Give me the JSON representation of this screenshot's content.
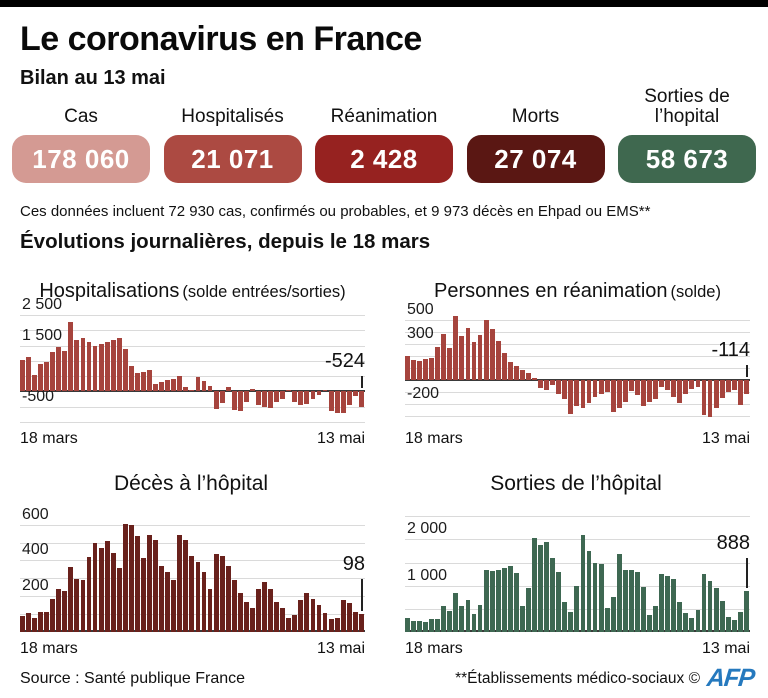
{
  "header": {
    "title": "Le coronavirus en France",
    "subtitle": "Bilan au 13 mai"
  },
  "stats": [
    {
      "label": "Cas",
      "value": "178 060",
      "color": "#d49a93"
    },
    {
      "label": "Hospitalisés",
      "value": "21 071",
      "color": "#ac4a42"
    },
    {
      "label": "Réanimation",
      "value": "2 428",
      "color": "#962220"
    },
    {
      "label": "Morts",
      "value": "27 074",
      "color": "#5a1713"
    },
    {
      "label": "Sorties de l’hopital",
      "value": "58 673",
      "color": "#3f684f"
    }
  ],
  "note": "Ces données incluent 72 930 cas, confirmés ou probables, et 9 973 décès en Ehpad ou EMS**",
  "section_title": "Évolutions journalières, depuis le 18 mars",
  "footer": {
    "source": "Source : Santé publique France",
    "right_note": "**Établissements médico-sociaux ©",
    "logo": "AFP"
  },
  "chart_data": [
    {
      "type": "bar",
      "title": "Hospitalisations",
      "title_paren": "(solde entrées/sorties)",
      "color": "#a6443d",
      "x_start": "18 mars",
      "x_end": "13 mai",
      "annotation": "-524",
      "ann_tick": 12,
      "ylim": [
        -1000,
        2600
      ],
      "grid_step": 500,
      "legend": "none",
      "yticks": [
        {
          "value": 2500,
          "label": "2 500"
        },
        {
          "value": 1500,
          "label": "1 500"
        },
        {
          "value": -500,
          "label": "-500"
        }
      ],
      "values": [
        1020,
        1120,
        540,
        900,
        980,
        1300,
        1440,
        1330,
        2280,
        1680,
        1740,
        1610,
        1500,
        1560,
        1610,
        1690,
        1740,
        1380,
        840,
        600,
        640,
        690,
        260,
        300,
        360,
        410,
        500,
        140,
        60,
        470,
        340,
        190,
        -570,
        -380,
        130,
        -610,
        -650,
        -360,
        90,
        -460,
        -510,
        -550,
        -340,
        -240,
        60,
        -360,
        -450,
        -410,
        -260,
        -110,
        40,
        -640,
        -710,
        -690,
        -460,
        -160,
        -524
      ]
    },
    {
      "type": "bar",
      "title": "Personnes en réanimation",
      "title_paren": "(solde)",
      "color": "#a6443d",
      "x_start": "18 mars",
      "x_end": "13 mai",
      "annotation": "-114",
      "ann_tick": 12,
      "ylim": [
        -350,
        570
      ],
      "grid_step": 100,
      "legend": "none",
      "yticks": [
        {
          "value": 500,
          "label": "500"
        },
        {
          "value": 300,
          "label": "300"
        },
        {
          "value": -200,
          "label": "-200"
        }
      ],
      "values": [
        205,
        170,
        160,
        180,
        186,
        280,
        385,
        270,
        540,
        370,
        440,
        315,
        380,
        502,
        430,
        330,
        230,
        150,
        120,
        89,
        60,
        20,
        -65,
        -80,
        -40,
        -115,
        -160,
        -280,
        -220,
        -235,
        -190,
        -140,
        -120,
        -100,
        -270,
        -230,
        -180,
        -90,
        -125,
        -215,
        -180,
        -160,
        -60,
        -85,
        -140,
        -190,
        -120,
        -70,
        -55,
        -290,
        -310,
        -230,
        -150,
        -100,
        -80,
        -210,
        -114
      ]
    },
    {
      "type": "bar",
      "title": "Décès à l’hôpital",
      "title_paren": "",
      "color": "#69211c",
      "x_start": "18 mars",
      "x_end": "13 mai",
      "annotation": "98",
      "ann_tick": 32,
      "ylim": [
        0,
        660
      ],
      "grid_step": 100,
      "legend": "none",
      "yticks": [
        {
          "value": 600,
          "label": "600"
        },
        {
          "value": 400,
          "label": "400"
        },
        {
          "value": 200,
          "label": "200"
        }
      ],
      "values": [
        89,
        108,
        78,
        112,
        112,
        186,
        240,
        231,
        365,
        299,
        292,
        418,
        499,
        471,
        509,
        441,
        357,
        605,
        597,
        536,
        412,
        544,
        516,
        369,
        335,
        292,
        541,
        514,
        424,
        389,
        336,
        242,
        437,
        426,
        367,
        289,
        218,
        166,
        135,
        242,
        278,
        243,
        166,
        135,
        80,
        95,
        178,
        218,
        186,
        151,
        104,
        70,
        79,
        177,
        163,
        110,
        98
      ]
    },
    {
      "type": "bar",
      "title": "Sorties de l’hôpital",
      "title_paren": "",
      "color": "#3e6852",
      "x_start": "18 mars",
      "x_end": "13 mai",
      "annotation": "888",
      "ann_tick": 30,
      "ylim": [
        0,
        2550
      ],
      "grid_step": 500,
      "legend": "none",
      "yticks": [
        {
          "value": 2000,
          "label": "2 000"
        },
        {
          "value": 1000,
          "label": "1 000"
        }
      ],
      "values": [
        310,
        245,
        235,
        215,
        275,
        285,
        570,
        450,
        840,
        560,
        700,
        380,
        580,
        1340,
        1320,
        1330,
        1380,
        1430,
        1280,
        560,
        950,
        2040,
        1880,
        1950,
        1590,
        1300,
        650,
        430,
        1000,
        2090,
        1740,
        1500,
        1480,
        520,
        750,
        1690,
        1350,
        1330,
        1300,
        980,
        360,
        560,
        1250,
        1200,
        1150,
        640,
        420,
        300,
        480,
        1250,
        1100,
        950,
        680,
        320,
        250,
        440,
        888
      ]
    }
  ]
}
